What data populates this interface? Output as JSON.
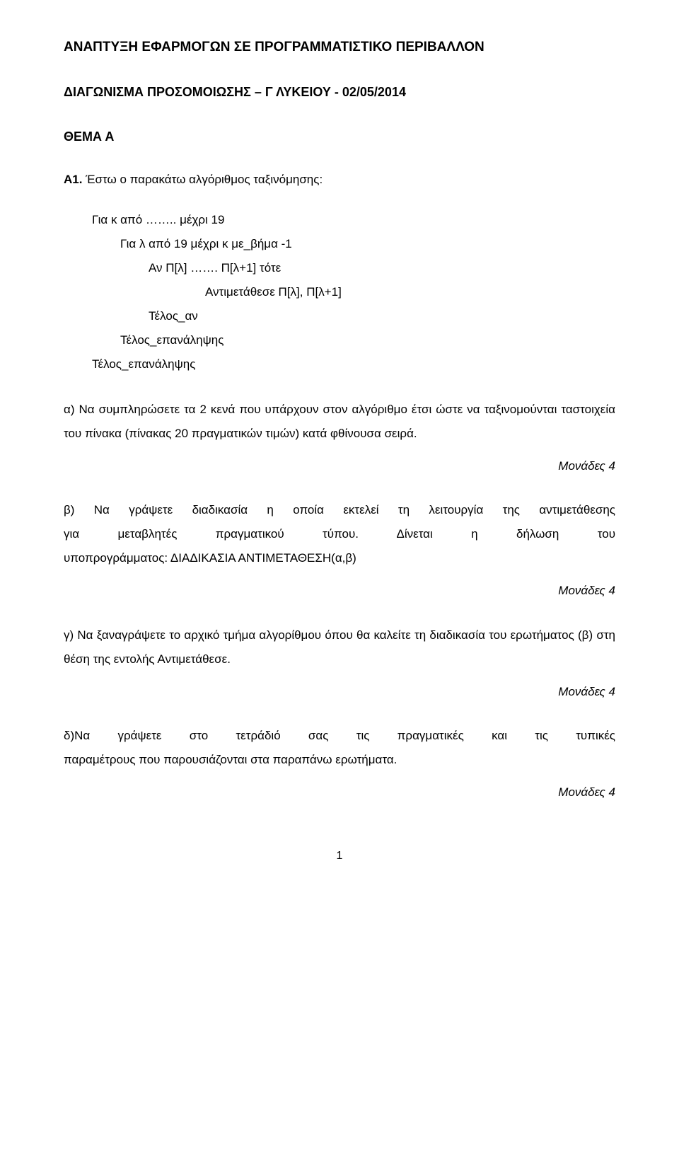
{
  "title": "ΑΝΑΠΤΥΞΗ ΕΦΑΡΜΟΓΩΝ ΣΕ ΠΡΟΓΡΑΜΜΑΤΙΣΤΙΚΟ ΠΕΡΙΒΑΛΛΟΝ",
  "subtitle": "ΔΙΑΓΩΝΙΣΜΑ ΠΡΟΣΟΜΟΙΩΣΗΣ – Γ ΛΥΚΕΙΟΥ - 02/05/2014",
  "thema": "ΘΕΜΑ Α",
  "a1_label": "Α1.",
  "a1_text": " Έστω ο παρακάτω αλγόριθμος ταξινόμησης:",
  "code": {
    "l1": "Για κ από …….. μέχρι 19",
    "l2": "Για λ από 19 μέχρι κ με_βήμα -1",
    "l3": "Αν Π[λ] ……. Π[λ+1] τότε",
    "l4": "Αντιμετάθεσε Π[λ], Π[λ+1]",
    "l5": "Τέλος_αν",
    "l6": "Τέλος_επανάληψης",
    "l7": "Τέλος_επανάληψης"
  },
  "qa": "α) Να συμπληρώσετε τα 2 κενά που υπάρχουν στον αλγόριθμο έτσι ώστε να ταξινομούνται ταστοιχεία του πίνακα (πίνακας 20 πραγματικών τιμών) κατά φθίνουσα σειρά.",
  "points_a": "Μονάδες 4",
  "qb_l1": "β) Να γράψετε διαδικασία η οποία εκτελεί τη λειτουργία της αντιμετάθεσης",
  "qb_l2": "για μεταβλητές πραγματικού τύπου. Δίνεται η δήλωση του",
  "qb_l3": "υποπρογράμματος: ΔΙΑΔΙΚΑΣΙΑ ΑΝΤΙΜΕΤΑΘΕΣΗ(α,β)",
  "points_b": "Μονάδες 4",
  "qc": "γ) Να ξαναγράψετε το αρχικό τμήμα αλγορίθμου όπου θα καλείτε τη διαδικασία του ερωτήματος (β) στη θέση της εντολής Αντιμετάθεσε.",
  "points_c": "Μονάδες 4",
  "qd_l1": "δ)Να γράψετε στο τετράδιό σας τις πραγματικές και τις τυπικές",
  "qd_l2": "παραμέτρους που παρουσιάζονται στα παραπάνω ερωτήματα.",
  "points_d": "Μονάδες 4",
  "pagenum": "1"
}
